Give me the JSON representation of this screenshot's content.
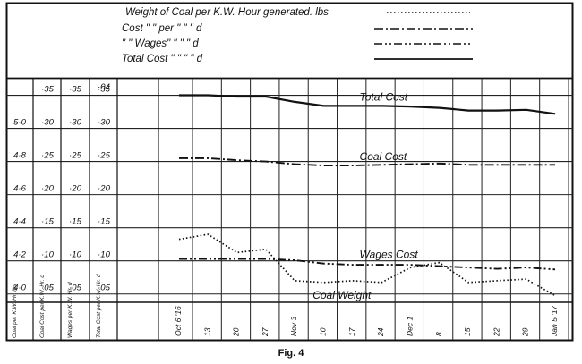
{
  "legend": [
    {
      "text": "Weight of Coal per K.W. Hour generated. lbs",
      "style": "dotted"
    },
    {
      "text": "Cost  \"   \"   per   \"          \"            \"        d",
      "style": "dashdot"
    },
    {
      "text": "\"    \" Wages\"      \"          \"            \"        d",
      "style": "dashdotdot"
    },
    {
      "text": "Total  Cost  \"      \"          \"            \"        d",
      "style": "solid"
    }
  ],
  "caption": "Fig. 4",
  "chart_data": {
    "type": "line",
    "x": [
      "Oct 6 '16",
      "13",
      "20",
      "27",
      "Nov 3",
      "10",
      "17",
      "24",
      "Dec 1",
      "8",
      "15",
      "22",
      "29",
      "Jan 5 '17"
    ],
    "axis_headers": [
      "Coal per K.W. Hr. lbs",
      "Coal Cost per K.W. Hr. d",
      "Wages per K.W. Hr. d",
      "Total Cost per K.W. Hr. d"
    ],
    "axes": [
      {
        "ticks": [
          "4·0",
          "4·2",
          "4·4",
          "4·6",
          "4·8",
          "5·0"
        ],
        "range": [
          3.95,
          5.3
        ]
      },
      {
        "ticks": [
          "·05",
          "·10",
          "·15",
          "·20",
          "·25",
          "·30",
          "·35"
        ],
        "range": [
          0.0375,
          0.375
        ]
      },
      {
        "ticks": [
          "·05",
          "·10",
          "·15",
          "·20",
          "·25",
          "·30",
          "·35"
        ],
        "range": [
          0.0375,
          0.375
        ]
      },
      {
        "ticks": [
          "·05",
          "·10",
          "·15",
          "·20",
          "·25",
          "·30",
          "·35",
          "·04"
        ],
        "range": [
          0.0375,
          0.375
        ]
      }
    ],
    "series": [
      {
        "name": "Total Cost",
        "style": "solid",
        "axis": 3,
        "values": [
          0.35,
          0.35,
          0.348,
          0.348,
          0.34,
          0.334,
          0.334,
          0.334,
          0.333,
          0.331,
          0.327,
          0.327,
          0.328,
          0.322
        ]
      },
      {
        "name": "Coal Cost",
        "style": "dashdot",
        "axis": 1,
        "values": [
          0.255,
          0.255,
          0.252,
          0.25,
          0.246,
          0.244,
          0.244,
          0.245,
          0.246,
          0.247,
          0.245,
          0.245,
          0.245,
          0.245
        ]
      },
      {
        "name": "Wages Cost",
        "style": "dashdotdot",
        "axis": 2,
        "values": [
          0.103,
          0.103,
          0.103,
          0.103,
          0.101,
          0.096,
          0.094,
          0.094,
          0.094,
          0.092,
          0.09,
          0.088,
          0.09,
          0.087
        ]
      },
      {
        "name": "Coal Weight",
        "style": "dotted",
        "axis": 0,
        "values": [
          4.33,
          4.36,
          4.25,
          4.27,
          4.08,
          4.07,
          4.08,
          4.07,
          4.16,
          4.19,
          4.07,
          4.08,
          4.09,
          3.99
        ]
      }
    ],
    "series_labels": [
      "Total Cost",
      "Coal Cost",
      "Wages Cost",
      "Coal Weight"
    ]
  }
}
